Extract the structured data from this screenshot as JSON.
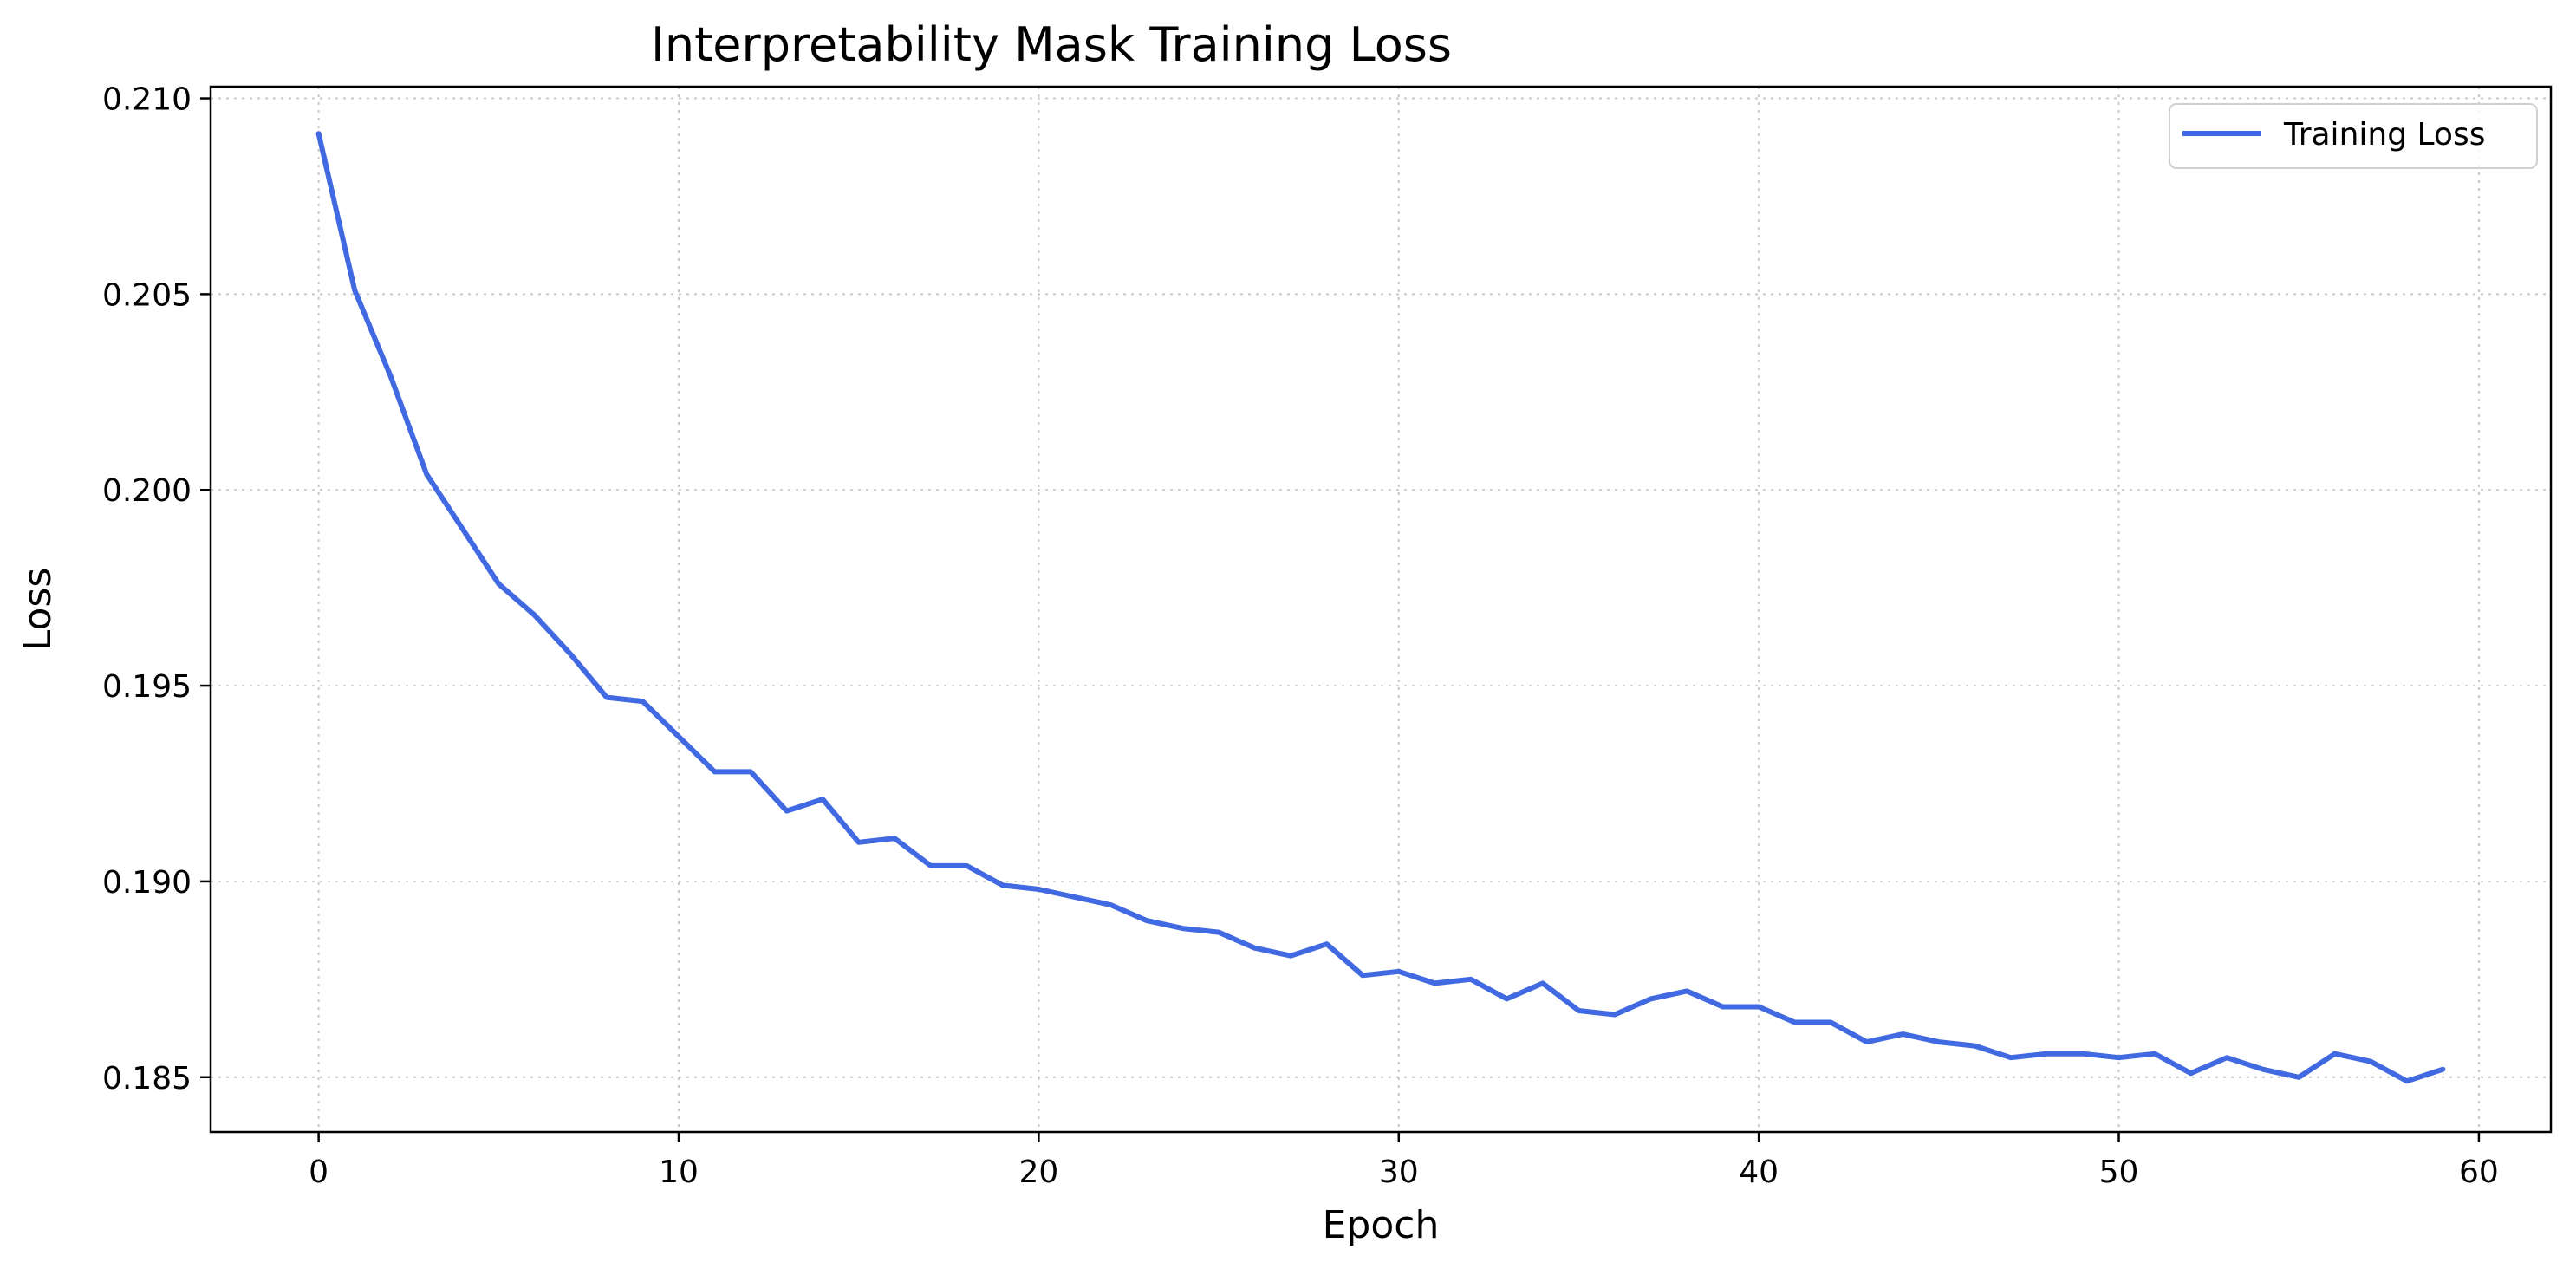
{
  "chart_data": {
    "type": "line",
    "title": "Interpretability Mask Training Loss",
    "xlabel": "Epoch",
    "ylabel": "Loss",
    "xlim": [
      -3,
      62
    ],
    "ylim": [
      0.1836,
      0.2103
    ],
    "xticks": [
      0,
      10,
      20,
      30,
      40,
      50,
      60
    ],
    "yticks": [
      0.185,
      0.19,
      0.195,
      0.2,
      0.205,
      0.21
    ],
    "ytick_labels": [
      "0.185",
      "0.190",
      "0.195",
      "0.200",
      "0.205",
      "0.210"
    ],
    "grid": true,
    "legend_position": "top-right",
    "series": [
      {
        "name": "Training Loss",
        "color": "#4169e1",
        "x": [
          0,
          1,
          2,
          3,
          4,
          5,
          6,
          7,
          8,
          9,
          10,
          11,
          12,
          13,
          14,
          15,
          16,
          17,
          18,
          19,
          20,
          21,
          22,
          23,
          24,
          25,
          26,
          27,
          28,
          29,
          30,
          31,
          32,
          33,
          34,
          35,
          36,
          37,
          38,
          39,
          40,
          41,
          42,
          43,
          44,
          45,
          46,
          47,
          48,
          49,
          50,
          51,
          52,
          53,
          54,
          55,
          56,
          57,
          58,
          59
        ],
        "y": [
          0.2091,
          0.2051,
          0.2029,
          0.2004,
          0.199,
          0.1976,
          0.1968,
          0.1958,
          0.1947,
          0.1946,
          0.1937,
          0.1928,
          0.1928,
          0.1918,
          0.1921,
          0.191,
          0.1911,
          0.1904,
          0.1904,
          0.1899,
          0.1898,
          0.1896,
          0.1894,
          0.189,
          0.1888,
          0.1887,
          0.1883,
          0.1881,
          0.1884,
          0.1876,
          0.1877,
          0.1874,
          0.1875,
          0.187,
          0.1874,
          0.1867,
          0.1866,
          0.187,
          0.1872,
          0.1868,
          0.1868,
          0.1864,
          0.1864,
          0.1859,
          0.1861,
          0.1859,
          0.1858,
          0.1855,
          0.1856,
          0.1856,
          0.1855,
          0.1856,
          0.1851,
          0.1855,
          0.1852,
          0.185,
          0.1856,
          0.1854,
          0.1849,
          0.1852
        ]
      }
    ]
  }
}
